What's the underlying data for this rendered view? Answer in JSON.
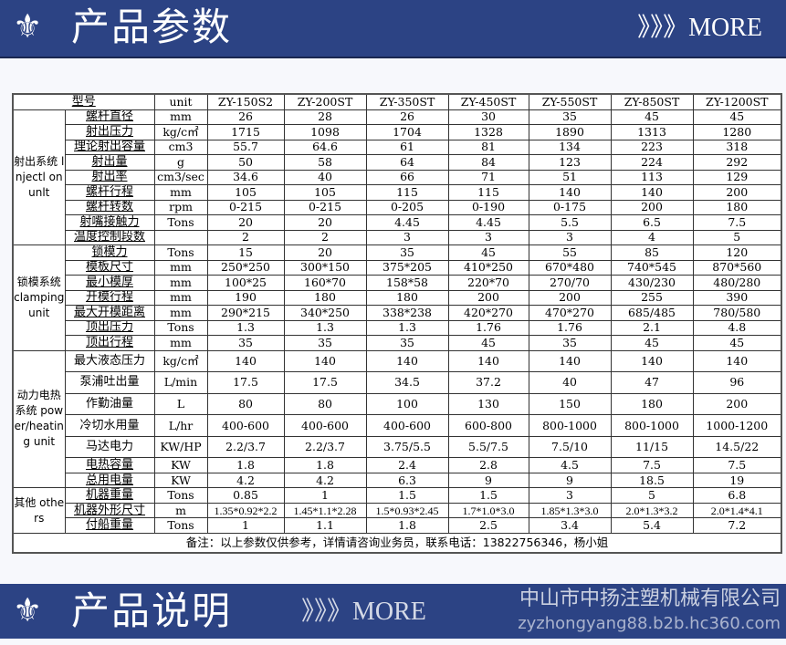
{
  "top_banner": {
    "icon": "fleur-de-lis-icon",
    "title": "产品参数",
    "more": "》》》MORE"
  },
  "bottom_banner": {
    "icon": "fleur-de-lis-icon",
    "title": "产品说明",
    "more": "》》》MORE",
    "watermark_company": "中山市中扬注塑机械有限公司",
    "watermark_url": "zyzhongyang88.b2b.hc360.com"
  },
  "table": {
    "header": {
      "model_label": "型号",
      "unit_label": "unit",
      "models": [
        "ZY-150S2",
        "ZY-200ST",
        "ZY-350ST",
        "ZY-450ST",
        "ZY-550ST",
        "ZY-850ST",
        "ZY-1200ST"
      ]
    },
    "groups": [
      {
        "label": "射出系统 lnjectl onunlt",
        "tall": false,
        "rows": [
          {
            "param": "螺杆直径",
            "unit": "mm",
            "values": [
              "26",
              "28",
              "26",
              "30",
              "35",
              "45",
              "45"
            ]
          },
          {
            "param": "射出压力",
            "unit": "kg/c㎡",
            "values": [
              "1715",
              "1098",
              "1704",
              "1328",
              "1890",
              "1313",
              "1280"
            ]
          },
          {
            "param": "理论射出容量",
            "unit": "cm3",
            "values": [
              "55.7",
              "64.6",
              "61",
              "81",
              "134",
              "223",
              "318"
            ]
          },
          {
            "param": "射出量",
            "unit": "g",
            "values": [
              "50",
              "58",
              "64",
              "84",
              "123",
              "224",
              "292"
            ]
          },
          {
            "param": "射出率",
            "unit": "cm3/sec",
            "values": [
              "34.6",
              "40",
              "66",
              "71",
              "51",
              "113",
              "129"
            ]
          },
          {
            "param": "螺杆行程",
            "unit": "mm",
            "values": [
              "105",
              "105",
              "115",
              "115",
              "140",
              "140",
              "200"
            ]
          },
          {
            "param": "螺杆转数",
            "unit": "rpm",
            "values": [
              "0-215",
              "0-215",
              "0-205",
              "0-190",
              "0-175",
              "200",
              "180"
            ]
          },
          {
            "param": "射嘴接触力",
            "unit": "Tons",
            "values": [
              "20",
              "20",
              "4.45",
              "4.45",
              "5.5",
              "6.5",
              "7.5"
            ]
          },
          {
            "param": "温度控制段数",
            "unit": "",
            "values": [
              "2",
              "2",
              "3",
              "3",
              "3",
              "4",
              "5"
            ]
          }
        ]
      },
      {
        "label": "锁模系统 clamping unit",
        "rows": [
          {
            "param": "锁模力",
            "unit": "Tons",
            "values": [
              "15",
              "20",
              "35",
              "45",
              "55",
              "85",
              "120"
            ]
          },
          {
            "param": "模板尺寸",
            "unit": "mm",
            "values": [
              "250*250",
              "300*150",
              "375*205",
              "410*250",
              "670*480",
              "740*545",
              "870*560"
            ]
          },
          {
            "param": "最小模厚",
            "unit": "mm",
            "values": [
              "100*25",
              "160*70",
              "158*58",
              "220*70",
              "270/70",
              "430/230",
              "480/280"
            ]
          },
          {
            "param": "开模行程",
            "unit": "mm",
            "values": [
              "190",
              "180",
              "180",
              "200",
              "200",
              "255",
              "390"
            ]
          },
          {
            "param": "最大开模距离",
            "unit": "mm",
            "values": [
              "290*215",
              "340*250",
              "338*238",
              "420*270",
              "470*270",
              "685/485",
              "780/580"
            ]
          },
          {
            "param": "顶出压力",
            "unit": "Tons",
            "values": [
              "1.3",
              "1.3",
              "1.3",
              "1.76",
              "1.76",
              "2.1",
              "4.8"
            ]
          },
          {
            "param": "顶出行程",
            "unit": "mm",
            "values": [
              "35",
              "35",
              "35",
              "45",
              "35",
              "45",
              "45"
            ]
          }
        ]
      },
      {
        "label": "动力电热系统 power/heating unit",
        "rows": [
          {
            "param": "最大液态压力",
            "unit": "kg/c㎡",
            "tall": true,
            "values": [
              "140",
              "140",
              "140",
              "140",
              "140",
              "140",
              "140"
            ]
          },
          {
            "param": "泵浦吐出量",
            "unit": "L/min",
            "tall": true,
            "values": [
              "17.5",
              "17.5",
              "34.5",
              "37.2",
              "40",
              "47",
              "96"
            ]
          },
          {
            "param": "作勤油量",
            "unit": "L",
            "tall": true,
            "values": [
              "80",
              "80",
              "100",
              "130",
              "150",
              "180",
              "200"
            ]
          },
          {
            "param": "冷切水用量",
            "unit": "L/hr",
            "tall": true,
            "values": [
              "400-600",
              "400-600",
              "400-600",
              "600-800",
              "800-1000",
              "800-1000",
              "1000-1200"
            ]
          },
          {
            "param": "马达电力",
            "unit": "KW/HP",
            "tall": true,
            "values": [
              "2.2/3.7",
              "2.2/3.7",
              "3.75/5.5",
              "5.5/7.5",
              "7.5/10",
              "11/15",
              "14.5/22"
            ]
          },
          {
            "param": "电热容量",
            "unit": "KW",
            "values": [
              "1.8",
              "1.8",
              "2.4",
              "2.8",
              "4.5",
              "7.5",
              "7.5"
            ]
          },
          {
            "param": "总用电量",
            "unit": "KW",
            "values": [
              "4.2",
              "4.2",
              "6.3",
              "9",
              "9",
              "18.5",
              "19"
            ]
          }
        ]
      },
      {
        "label": "其他 others",
        "rows": [
          {
            "param": "机器重量",
            "unit": "Tons",
            "values": [
              "0.85",
              "1",
              "1.5",
              "1.5",
              "3",
              "5",
              "6.8"
            ]
          },
          {
            "param": "机器外形尺寸",
            "unit": "m",
            "values": [
              "1.35*0.92*2.2",
              "1.45*1.1*2.28",
              "1.5*0.93*2.45",
              "1.7*1.0*3.0",
              "1.85*1.3*3.0",
              "2.0*1.3*3.2",
              "2.0*1.4*4.1"
            ]
          },
          {
            "param": "付船重量",
            "unit": "Tons",
            "values": [
              "1",
              "1.1",
              "1.8",
              "2.5",
              "3.4",
              "5.4",
              "7.2"
            ]
          }
        ]
      }
    ],
    "note": "备注：以上参数仅供参考，详情请咨询业务员，联系电话：13822756346，杨小姐"
  }
}
